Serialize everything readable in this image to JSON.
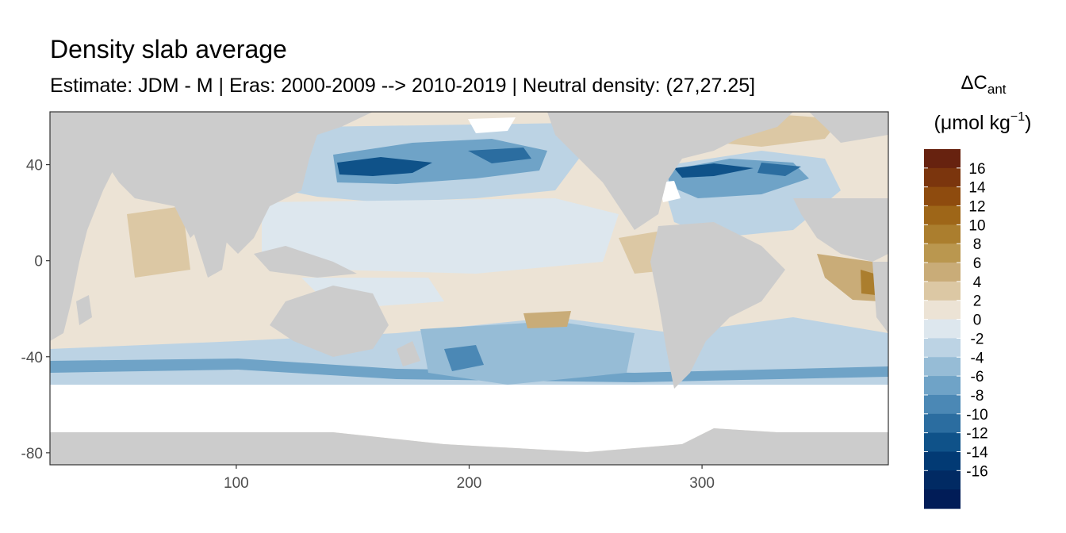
{
  "chart_data": {
    "type": "heatmap",
    "title": "Density slab average",
    "subtitle": "Estimate: JDM - M | Eras: 2000-2009 --> 2010-2019 | Neutral density: (27,27.25]",
    "xlabel": "",
    "ylabel": "",
    "xlim": [
      20,
      380
    ],
    "ylim": [
      -85,
      62
    ],
    "x_ticks": [
      100,
      200,
      300
    ],
    "y_ticks": [
      40,
      0,
      -40,
      -80
    ],
    "grid": true,
    "land_color": "#cccccc",
    "legend": {
      "title_main": "ΔC",
      "title_sub": "ant",
      "units_prefix": "(μmol kg",
      "units_sup": "−1",
      "units_suffix": ")",
      "placement": "right",
      "bins": [
        {
          "label": "16",
          "color": "#67220f"
        },
        {
          "label": "14",
          "color": "#7b350d"
        },
        {
          "label": "12",
          "color": "#8e4b0e"
        },
        {
          "label": "10",
          "color": "#9e6618"
        },
        {
          "label": "8",
          "color": "#ab7e2e"
        },
        {
          "label": "6",
          "color": "#ba974f"
        },
        {
          "label": "4",
          "color": "#c9ac78"
        },
        {
          "label": "2",
          "color": "#dcc8a4"
        },
        {
          "label": "0",
          "color": "#ece3d5"
        },
        {
          "label": "-2",
          "color": "#dde7ee"
        },
        {
          "label": "-4",
          "color": "#bcd3e4"
        },
        {
          "label": "-6",
          "color": "#96bcd6"
        },
        {
          "label": "-8",
          "color": "#6fa3c7"
        },
        {
          "label": "-10",
          "color": "#4b88b5"
        },
        {
          "label": "-12",
          "color": "#2b6da0"
        },
        {
          "label": "-14",
          "color": "#0f5289"
        },
        {
          "label": "-16",
          "color": "#023a74"
        }
      ],
      "extra_bin_colors": [
        "#012a63",
        "#011c57"
      ]
    }
  }
}
